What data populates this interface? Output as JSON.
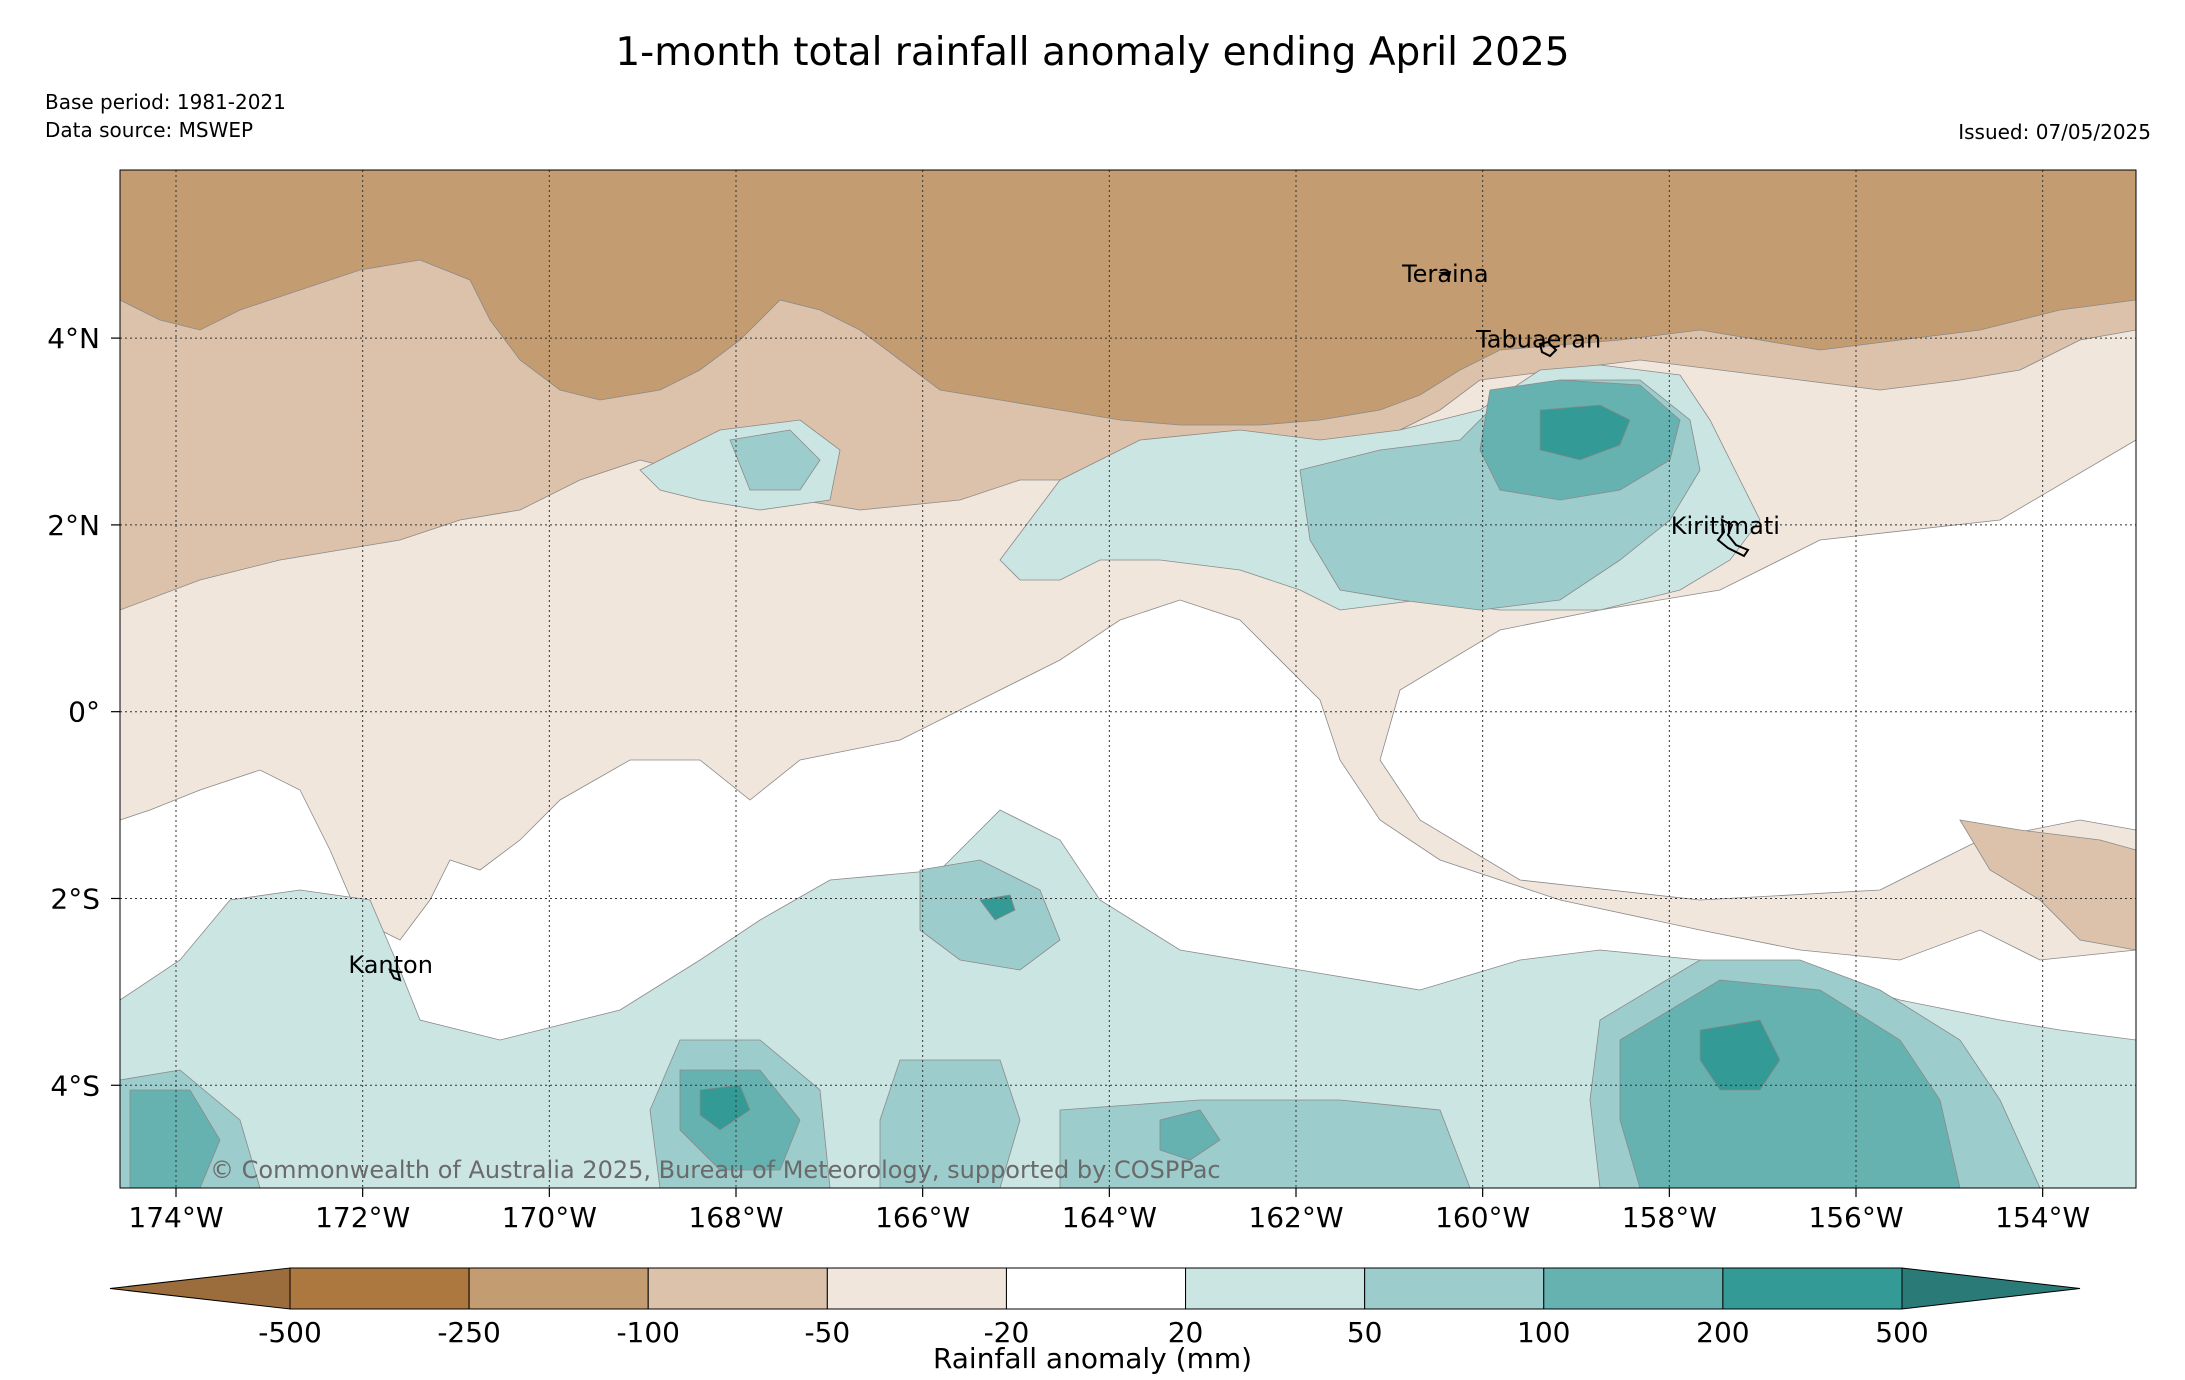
{
  "header": {
    "title": "1-month total rainfall anomaly ending April 2025",
    "base_period": "Base period: 1981-2021",
    "data_source": "Data source: MSWEP",
    "issued": "Issued: 07/05/2025"
  },
  "map": {
    "lon_range": [
      -174.6,
      -153.0
    ],
    "lat_range": [
      -5.1,
      5.8
    ],
    "lon_ticks": [
      {
        "value": -174,
        "label": "174°W"
      },
      {
        "value": -172,
        "label": "172°W"
      },
      {
        "value": -170,
        "label": "170°W"
      },
      {
        "value": -168,
        "label": "168°W"
      },
      {
        "value": -166,
        "label": "166°W"
      },
      {
        "value": -164,
        "label": "164°W"
      },
      {
        "value": -162,
        "label": "162°W"
      },
      {
        "value": -160,
        "label": "160°W"
      },
      {
        "value": -158,
        "label": "158°W"
      },
      {
        "value": -156,
        "label": "156°W"
      },
      {
        "value": -154,
        "label": "154°W"
      }
    ],
    "lat_ticks": [
      {
        "value": 4,
        "label": "4°N"
      },
      {
        "value": 2,
        "label": "2°N"
      },
      {
        "value": 0,
        "label": "0°"
      },
      {
        "value": -2,
        "label": "2°S"
      },
      {
        "value": -4,
        "label": "4°S"
      }
    ],
    "places": [
      {
        "name": "Teraina",
        "lon": -160.4,
        "lat": 4.6
      },
      {
        "name": "Tabuaeran",
        "lon": -159.4,
        "lat": 3.9
      },
      {
        "name": "Kiritimati",
        "lon": -157.4,
        "lat": 1.9
      },
      {
        "name": "Kanton",
        "lon": -171.7,
        "lat": -2.8
      }
    ],
    "copyright": "© Commonwealth of Australia 2025, Bureau of Meteorology, supported by COSPPac"
  },
  "colorbar": {
    "title": "Rainfall anomaly (mm)",
    "labels": [
      "-500",
      "-250",
      "-100",
      "-50",
      "-20",
      "20",
      "50",
      "100",
      "200",
      "500"
    ],
    "colors": [
      "#9c6d3c",
      "#ad7840",
      "#c49c72",
      "#dcc2aa",
      "#f0e6dc",
      "#ffffff",
      "#cbe5e3",
      "#9ccccb",
      "#66b2b0",
      "#339a96",
      "#2a7b78"
    ]
  }
}
